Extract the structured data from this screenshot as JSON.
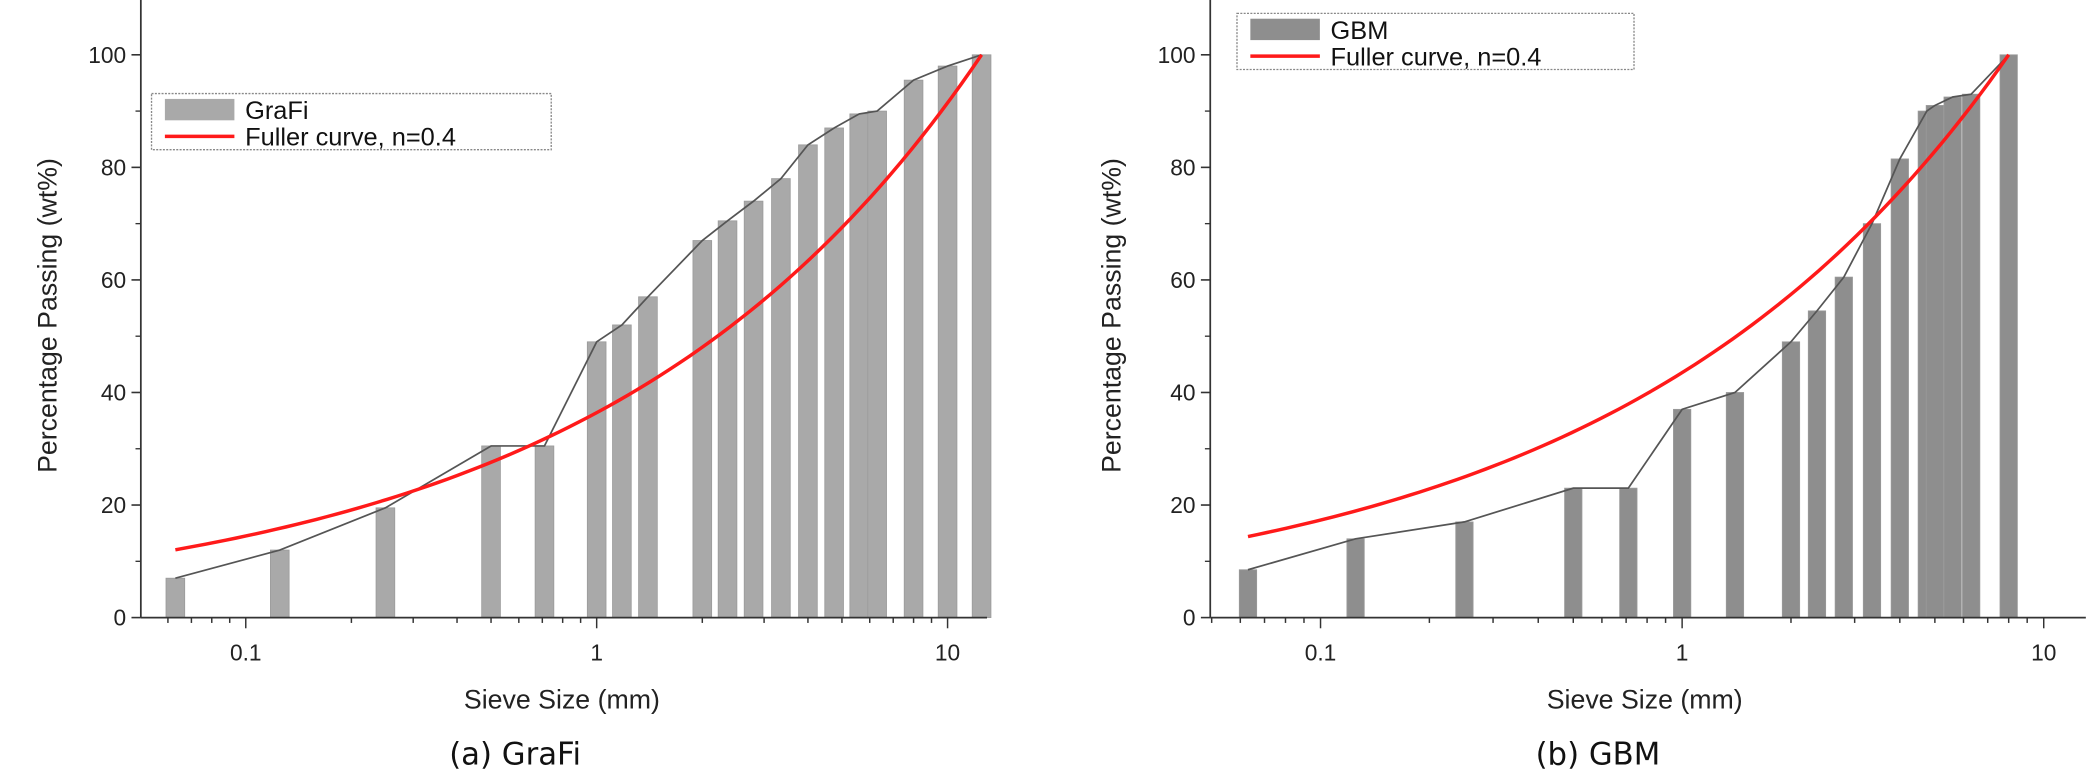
{
  "chart_data": [
    {
      "type": "bar",
      "caption": "(a) GraFi",
      "xlabel": "Sieve Size (mm)",
      "ylabel": "Percentage Passing  (wt%)",
      "xscale": "log",
      "xlim": [
        0.064,
        12.8
      ],
      "ylim": [
        0,
        110
      ],
      "xticks": [
        0.1,
        1,
        10
      ],
      "xtick_labels": [
        "0.1",
        "1",
        "10"
      ],
      "yticks": [
        0,
        20,
        40,
        60,
        80,
        100
      ],
      "legend_position": "top-left",
      "bar_color": "#a9a9a9",
      "series": [
        {
          "name": "GraFi",
          "kind": "bar",
          "x": [
            0.063,
            0.125,
            0.25,
            0.5,
            0.71,
            1,
            1.18,
            1.4,
            2,
            2.36,
            2.8,
            3.35,
            4,
            4.75,
            5.6,
            6.3,
            8,
            10,
            12.5
          ],
          "values": [
            7,
            12,
            19.5,
            30.5,
            30.5,
            49,
            52,
            57,
            67,
            70.5,
            74,
            78,
            84,
            87,
            89.5,
            90,
            95.5,
            98,
            100
          ]
        },
        {
          "name": "Fuller curve, n=0.4",
          "kind": "line",
          "color": "#ff1a1a",
          "n": 0.4,
          "dmax": 12.5
        }
      ]
    },
    {
      "type": "bar",
      "caption": "(b) GBM",
      "xlabel": "Sieve Size (mm)",
      "ylabel": "Percentage Passing  (wt%)",
      "xscale": "log",
      "xlim": [
        0.054,
        14.5
      ],
      "ylim": [
        0,
        110
      ],
      "xticks": [
        0.1,
        1,
        10
      ],
      "xtick_labels": [
        "0.1",
        "1",
        "10"
      ],
      "yticks": [
        0,
        20,
        40,
        60,
        80,
        100
      ],
      "legend_position": "top-left",
      "bar_color": "#8e8e8e",
      "series": [
        {
          "name": "GBM",
          "kind": "bar",
          "x": [
            0.063,
            0.125,
            0.25,
            0.5,
            0.71,
            1,
            1.4,
            2,
            2.36,
            2.8,
            3.35,
            4,
            4.75,
            5,
            5.6,
            6.3,
            8
          ],
          "values": [
            8.5,
            14,
            17,
            23,
            23,
            37,
            40,
            49,
            54.5,
            60.5,
            70,
            81.5,
            90,
            91,
            92.5,
            93,
            100
          ]
        },
        {
          "name": "Fuller curve, n=0.4",
          "kind": "line",
          "color": "#ff1a1a",
          "n": 0.4,
          "dmax": 8
        }
      ]
    }
  ]
}
